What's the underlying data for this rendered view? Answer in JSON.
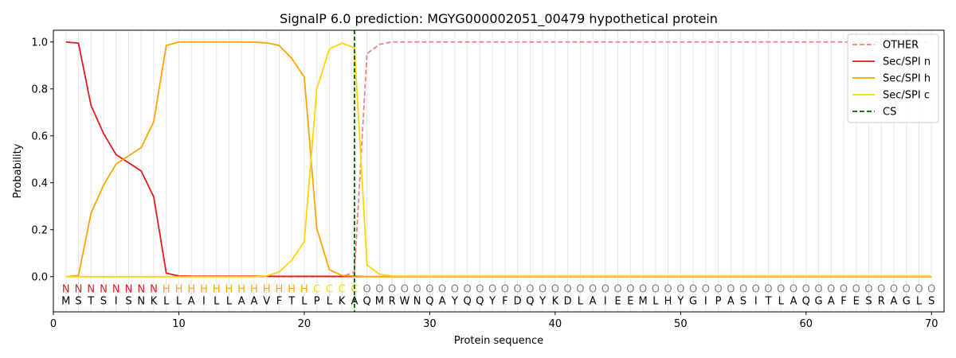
{
  "chart_data": {
    "type": "line",
    "title": "SignalP 6.0 prediction: MGYG000002051_00479 hypothetical protein",
    "xlabel": "Protein sequence",
    "ylabel": "Probability",
    "xlim": [
      0,
      71
    ],
    "ylim": [
      -0.15,
      1.05
    ],
    "x_ticks": [
      0,
      10,
      20,
      30,
      40,
      50,
      60,
      70
    ],
    "y_ticks": [
      0.0,
      0.2,
      0.4,
      0.6,
      0.8,
      1.0
    ],
    "x_tick_labels": [
      "0",
      "10",
      "20",
      "30",
      "40",
      "50",
      "60",
      "70"
    ],
    "y_tick_labels": [
      "0.0",
      "0.2",
      "0.4",
      "0.6",
      "0.8",
      "1.0"
    ],
    "grid": "vertical lines at each residue",
    "legend_position": "top-right",
    "cleavage_site": 24,
    "sequence": [
      "M",
      "S",
      "T",
      "S",
      "I",
      "S",
      "N",
      "K",
      "L",
      "L",
      "A",
      "I",
      "L",
      "L",
      "A",
      "A",
      "V",
      "F",
      "T",
      "L",
      "P",
      "L",
      "K",
      "A",
      "Q",
      "M",
      "R",
      "W",
      "N",
      "Q",
      "A",
      "Y",
      "Q",
      "Q",
      "Y",
      "F",
      "D",
      "Q",
      "Y",
      "K",
      "D",
      "L",
      "A",
      "I",
      "E",
      "E",
      "M",
      "L",
      "H",
      "Y",
      "G",
      "I",
      "P",
      "A",
      "S",
      "I",
      "T",
      "L",
      "A",
      "Q",
      "G",
      "A",
      "F",
      "E",
      "S",
      "R",
      "A",
      "G",
      "L",
      "S"
    ],
    "labels": [
      "N",
      "N",
      "N",
      "N",
      "N",
      "N",
      "N",
      "N",
      "H",
      "H",
      "H",
      "H",
      "H",
      "H",
      "H",
      "H",
      "H",
      "H",
      "H",
      "H",
      "C",
      "C",
      "C",
      "C",
      "O",
      "O",
      "O",
      "O",
      "O",
      "O",
      "O",
      "O",
      "O",
      "O",
      "O",
      "O",
      "O",
      "O",
      "O",
      "O",
      "O",
      "O",
      "O",
      "O",
      "O",
      "O",
      "O",
      "O",
      "O",
      "O",
      "O",
      "O",
      "O",
      "O",
      "O",
      "O",
      "O",
      "O",
      "O",
      "O",
      "O",
      "O",
      "O",
      "O",
      "O",
      "O",
      "O",
      "O",
      "O",
      "O"
    ],
    "label_colors": {
      "N": "#e31a1c",
      "H": "#ffa500",
      "C": "#ffd700",
      "O": "#808080"
    },
    "series": [
      {
        "name": "OTHER",
        "color": "#f08080",
        "dash": "dashed",
        "values": [
          0.0,
          0.0,
          0.0,
          0.0,
          0.0,
          0.0,
          0.0,
          0.0,
          0.0,
          0.0,
          0.0,
          0.0,
          0.0,
          0.0,
          0.0,
          0.0,
          0.0,
          0.0,
          0.0,
          0.0,
          0.0,
          0.0,
          0.0,
          0.02,
          0.95,
          0.99,
          1.0,
          1.0,
          1.0,
          1.0,
          1.0,
          1.0,
          1.0,
          1.0,
          1.0,
          1.0,
          1.0,
          1.0,
          1.0,
          1.0,
          1.0,
          1.0,
          1.0,
          1.0,
          1.0,
          1.0,
          1.0,
          1.0,
          1.0,
          1.0,
          1.0,
          1.0,
          1.0,
          1.0,
          1.0,
          1.0,
          1.0,
          1.0,
          1.0,
          1.0,
          1.0,
          1.0,
          1.0,
          1.0,
          1.0,
          1.0,
          1.0,
          1.0,
          1.0,
          1.0
        ]
      },
      {
        "name": "Sec/SPI n",
        "color": "#e31a1c",
        "dash": "solid",
        "values": [
          1.0,
          0.995,
          0.73,
          0.61,
          0.52,
          0.485,
          0.45,
          0.34,
          0.015,
          0.003,
          0.002,
          0.002,
          0.002,
          0.002,
          0.002,
          0.002,
          0.002,
          0.001,
          0.001,
          0.001,
          0.001,
          0.001,
          0.001,
          0.001,
          0.0,
          0.0,
          0.0,
          0.0,
          0.0,
          0.0,
          0.0,
          0.0,
          0.0,
          0.0,
          0.0,
          0.0,
          0.0,
          0.0,
          0.0,
          0.0,
          0.0,
          0.0,
          0.0,
          0.0,
          0.0,
          0.0,
          0.0,
          0.0,
          0.0,
          0.0,
          0.0,
          0.0,
          0.0,
          0.0,
          0.0,
          0.0,
          0.0,
          0.0,
          0.0,
          0.0,
          0.0,
          0.0,
          0.0,
          0.0,
          0.0,
          0.0,
          0.0,
          0.0,
          0.0,
          0.0
        ]
      },
      {
        "name": "Sec/SPI h",
        "color": "#ffa500",
        "dash": "solid",
        "values": [
          0.0,
          0.005,
          0.27,
          0.39,
          0.48,
          0.515,
          0.55,
          0.66,
          0.985,
          1.0,
          1.0,
          1.0,
          1.0,
          1.0,
          1.0,
          0.999,
          0.996,
          0.985,
          0.93,
          0.85,
          0.205,
          0.03,
          0.005,
          0.003,
          0.0,
          0.0,
          0.0,
          0.0,
          0.0,
          0.0,
          0.0,
          0.0,
          0.0,
          0.0,
          0.0,
          0.0,
          0.0,
          0.0,
          0.0,
          0.0,
          0.0,
          0.0,
          0.0,
          0.0,
          0.0,
          0.0,
          0.0,
          0.0,
          0.0,
          0.0,
          0.0,
          0.0,
          0.0,
          0.0,
          0.0,
          0.0,
          0.0,
          0.0,
          0.0,
          0.0,
          0.0,
          0.0,
          0.0,
          0.0,
          0.0,
          0.0,
          0.0,
          0.0,
          0.0,
          0.0
        ]
      },
      {
        "name": "Sec/SPI c",
        "color": "#ffd700",
        "dash": "solid",
        "values": [
          0.0,
          0.0,
          0.0,
          0.0,
          0.0,
          0.0,
          0.0,
          0.0,
          0.0,
          0.0,
          0.0,
          0.0,
          0.0,
          0.0,
          0.0,
          0.0,
          0.003,
          0.02,
          0.07,
          0.15,
          0.8,
          0.97,
          0.995,
          0.975,
          0.05,
          0.01,
          0.003,
          0.002,
          0.002,
          0.002,
          0.002,
          0.002,
          0.002,
          0.002,
          0.002,
          0.002,
          0.002,
          0.002,
          0.002,
          0.002,
          0.002,
          0.002,
          0.002,
          0.002,
          0.002,
          0.002,
          0.002,
          0.002,
          0.002,
          0.002,
          0.002,
          0.002,
          0.002,
          0.002,
          0.002,
          0.002,
          0.002,
          0.002,
          0.002,
          0.002,
          0.002,
          0.002,
          0.002,
          0.002,
          0.002,
          0.002,
          0.002,
          0.002,
          0.002,
          0.002
        ]
      }
    ],
    "cs_series": {
      "name": "CS",
      "color": "#006400",
      "dash": "dashed"
    }
  }
}
